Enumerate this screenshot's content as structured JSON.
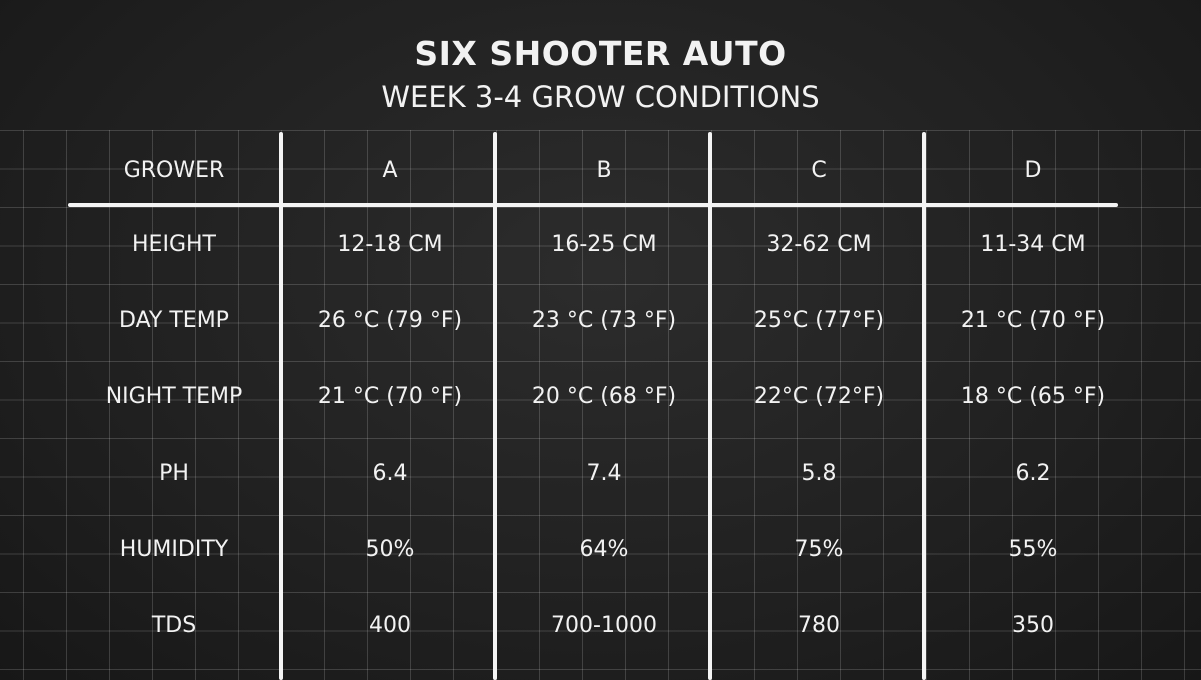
{
  "title": "SIX SHOOTER AUTO",
  "subtitle": "WEEK 3-4 GROW CONDITIONS",
  "table": {
    "header": [
      "GROWER",
      "A",
      "B",
      "C",
      "D"
    ],
    "rows": [
      [
        "HEIGHT",
        "12-18 CM",
        "16-25 CM",
        "32-62 CM",
        "11-34 CM"
      ],
      [
        "DAY TEMP",
        "26 °C (79 °F)",
        "23 °C (73 °F)",
        "25°C (77°F)",
        "21 °C (70 °F)"
      ],
      [
        "NIGHT TEMP",
        "21 °C (70 °F)",
        "20 °C (68 °F)",
        "22°C (72°F)",
        "18 °C (65 °F)"
      ],
      [
        "PH",
        "6.4",
        "7.4",
        "5.8",
        "6.2"
      ],
      [
        "HUMIDITY",
        "50%",
        "64%",
        "75%",
        "55%"
      ],
      [
        "TDS",
        "400",
        "700-1000",
        "780",
        "350"
      ]
    ]
  },
  "colors": {
    "background": "#1e1e1e",
    "chalk": "#f2f2f2"
  }
}
